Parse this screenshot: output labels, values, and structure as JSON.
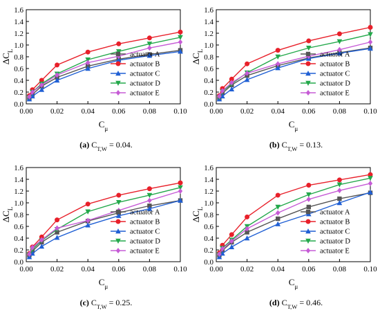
{
  "chart_data": [
    {
      "type": "line",
      "panel_label": "(a)",
      "caption_prefix": "C",
      "caption_sub": "T,W",
      "caption_value": " = 0.04.",
      "xlabel": "C",
      "xlabel_sub": "μ",
      "ylabel": "ΔC",
      "ylabel_sub": "L",
      "xlim": [
        0,
        0.1
      ],
      "ylim": [
        0,
        1.6
      ],
      "xticks": [
        "0.00",
        "0.02",
        "0.04",
        "0.06",
        "0.08",
        "0.10"
      ],
      "yticks": [
        "0.0",
        "0.2",
        "0.4",
        "0.6",
        "0.8",
        "1.0",
        "1.2",
        "1.4",
        "1.6"
      ],
      "x": [
        0.002,
        0.004,
        0.01,
        0.02,
        0.04,
        0.06,
        0.08,
        0.1
      ],
      "series": [
        {
          "name": "actuator A",
          "color": "#555555",
          "marker": "square",
          "values": [
            0.1,
            0.16,
            0.3,
            0.45,
            0.64,
            0.76,
            0.84,
            0.91
          ]
        },
        {
          "name": "actuator B",
          "color": "#e8202a",
          "marker": "circle",
          "values": [
            0.14,
            0.24,
            0.4,
            0.66,
            0.88,
            1.02,
            1.12,
            1.22
          ]
        },
        {
          "name": "actuator C",
          "color": "#1f5fd4",
          "marker": "triangle-up",
          "values": [
            0.08,
            0.13,
            0.24,
            0.4,
            0.6,
            0.74,
            0.82,
            0.89
          ]
        },
        {
          "name": "actuator D",
          "color": "#22a84a",
          "marker": "triangle-down",
          "values": [
            0.11,
            0.2,
            0.34,
            0.51,
            0.75,
            0.89,
            1.02,
            1.13
          ]
        },
        {
          "name": "actuator E",
          "color": "#c65bd6",
          "marker": "diamond",
          "values": [
            0.12,
            0.2,
            0.32,
            0.49,
            0.7,
            0.81,
            0.95,
            1.05
          ]
        }
      ]
    },
    {
      "type": "line",
      "panel_label": "(b)",
      "caption_prefix": "C",
      "caption_sub": "T,W",
      "caption_value": " = 0.13.",
      "xlabel": "C",
      "xlabel_sub": "μ",
      "ylabel": "ΔC",
      "ylabel_sub": "L",
      "xlim": [
        0,
        0.1
      ],
      "ylim": [
        0,
        1.6
      ],
      "xticks": [
        "0.00",
        "0.02",
        "0.04",
        "0.06",
        "0.08",
        "0.10"
      ],
      "yticks": [
        "0.0",
        "0.2",
        "0.4",
        "0.6",
        "0.8",
        "1.0",
        "1.2",
        "1.4",
        "1.6"
      ],
      "x": [
        0.002,
        0.004,
        0.01,
        0.02,
        0.04,
        0.06,
        0.08,
        0.1
      ],
      "series": [
        {
          "name": "actuator A",
          "color": "#555555",
          "marker": "square",
          "values": [
            0.1,
            0.18,
            0.32,
            0.48,
            0.65,
            0.78,
            0.87,
            0.95
          ]
        },
        {
          "name": "actuator B",
          "color": "#e8202a",
          "marker": "circle",
          "values": [
            0.14,
            0.26,
            0.42,
            0.68,
            0.91,
            1.07,
            1.19,
            1.3
          ]
        },
        {
          "name": "actuator C",
          "color": "#1f5fd4",
          "marker": "triangle-up",
          "values": [
            0.08,
            0.13,
            0.25,
            0.41,
            0.61,
            0.77,
            0.86,
            0.94
          ]
        },
        {
          "name": "actuator D",
          "color": "#22a84a",
          "marker": "triangle-down",
          "values": [
            0.11,
            0.21,
            0.34,
            0.53,
            0.8,
            0.95,
            1.06,
            1.18
          ]
        },
        {
          "name": "actuator E",
          "color": "#c65bd6",
          "marker": "diamond",
          "values": [
            0.13,
            0.22,
            0.36,
            0.52,
            0.68,
            0.81,
            0.92,
            1.05
          ]
        }
      ]
    },
    {
      "type": "line",
      "panel_label": "(c)",
      "caption_prefix": "C",
      "caption_sub": "T,W",
      "caption_value": " = 0.25.",
      "xlabel": "C",
      "xlabel_sub": "μ",
      "ylabel": "ΔC",
      "ylabel_sub": "L",
      "xlim": [
        0,
        0.1
      ],
      "ylim": [
        0,
        1.6
      ],
      "xticks": [
        "0.00",
        "0.02",
        "0.04",
        "0.06",
        "0.08",
        "0.10"
      ],
      "yticks": [
        "0.0",
        "0.2",
        "0.4",
        "0.6",
        "0.8",
        "1.0",
        "1.2",
        "1.4",
        "1.6"
      ],
      "x": [
        0.002,
        0.004,
        0.01,
        0.02,
        0.04,
        0.06,
        0.08,
        0.1
      ],
      "series": [
        {
          "name": "actuator A",
          "color": "#555555",
          "marker": "square",
          "values": [
            0.11,
            0.18,
            0.33,
            0.5,
            0.69,
            0.83,
            0.95,
            1.04
          ]
        },
        {
          "name": "actuator B",
          "color": "#e8202a",
          "marker": "circle",
          "values": [
            0.14,
            0.25,
            0.42,
            0.71,
            0.98,
            1.13,
            1.24,
            1.34
          ]
        },
        {
          "name": "actuator C",
          "color": "#1f5fd4",
          "marker": "triangle-up",
          "values": [
            0.08,
            0.14,
            0.26,
            0.41,
            0.62,
            0.78,
            0.9,
            1.04
          ]
        },
        {
          "name": "actuator D",
          "color": "#22a84a",
          "marker": "triangle-down",
          "values": [
            0.12,
            0.21,
            0.36,
            0.55,
            0.85,
            1.01,
            1.13,
            1.26
          ]
        },
        {
          "name": "actuator E",
          "color": "#c65bd6",
          "marker": "diamond",
          "values": [
            0.13,
            0.24,
            0.37,
            0.57,
            0.7,
            0.87,
            1.04,
            1.2
          ]
        }
      ]
    },
    {
      "type": "line",
      "panel_label": "(d)",
      "caption_prefix": "C",
      "caption_sub": "T,W",
      "caption_value": " = 0.46.",
      "xlabel": "C",
      "xlabel_sub": "μ",
      "ylabel": "ΔC",
      "ylabel_sub": "L",
      "xlim": [
        0,
        0.1
      ],
      "ylim": [
        0,
        1.6
      ],
      "xticks": [
        "0.00",
        "0.02",
        "0.04",
        "0.06",
        "0.08",
        "0.10"
      ],
      "yticks": [
        "0.0",
        "0.2",
        "0.4",
        "0.6",
        "0.8",
        "1.0",
        "1.2",
        "1.4",
        "1.6"
      ],
      "x": [
        0.002,
        0.004,
        0.01,
        0.02,
        0.04,
        0.06,
        0.08,
        0.1
      ],
      "series": [
        {
          "name": "actuator A",
          "color": "#555555",
          "marker": "square",
          "values": [
            0.11,
            0.19,
            0.33,
            0.5,
            0.73,
            0.93,
            1.07,
            1.17
          ]
        },
        {
          "name": "actuator B",
          "color": "#e8202a",
          "marker": "circle",
          "values": [
            0.15,
            0.28,
            0.46,
            0.76,
            1.13,
            1.3,
            1.39,
            1.48
          ]
        },
        {
          "name": "actuator C",
          "color": "#1f5fd4",
          "marker": "triangle-up",
          "values": [
            0.08,
            0.14,
            0.25,
            0.4,
            0.64,
            0.81,
            1.0,
            1.18
          ]
        },
        {
          "name": "actuator D",
          "color": "#22a84a",
          "marker": "triangle-down",
          "values": [
            0.12,
            0.23,
            0.37,
            0.6,
            0.93,
            1.14,
            1.31,
            1.42
          ]
        },
        {
          "name": "actuator E",
          "color": "#c65bd6",
          "marker": "diamond",
          "values": [
            0.13,
            0.22,
            0.35,
            0.56,
            0.83,
            1.06,
            1.21,
            1.33
          ]
        }
      ]
    }
  ]
}
